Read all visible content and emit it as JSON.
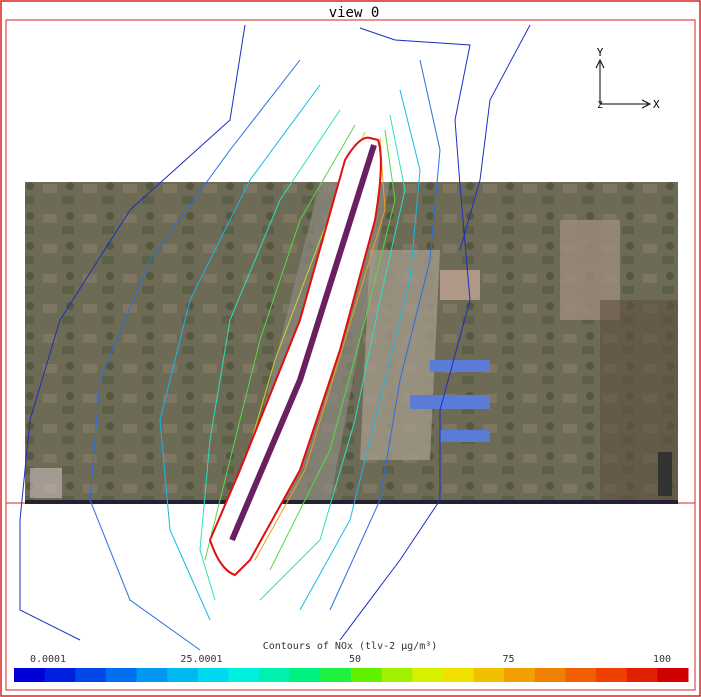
{
  "view": {
    "title": "view 0"
  },
  "axes": {
    "y": "Y",
    "x": "X",
    "z": "Z"
  },
  "colorbar": {
    "title": "Contours of NOx (tlv-2 µg/m³)",
    "ticks": [
      0.0001,
      25.0001,
      50,
      75,
      100
    ]
  }
}
